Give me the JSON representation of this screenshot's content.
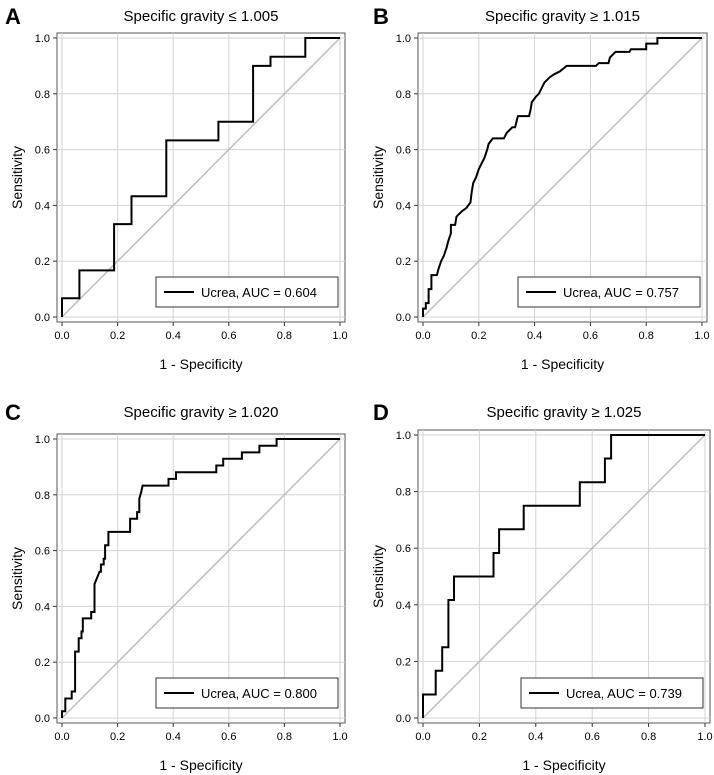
{
  "chart_data": [
    {
      "type": "line",
      "panel_letter": "A",
      "title": "Specific gravity ≤ 1.005",
      "xlabel": "1 - Specificity",
      "ylabel": "Sensitivity",
      "xlim": [
        0,
        1
      ],
      "ylim": [
        0,
        1
      ],
      "ticks": [
        "0.0",
        "0.2",
        "0.4",
        "0.6",
        "0.8",
        "1.0"
      ],
      "grid": true,
      "legend_position": "bottom-right",
      "series": [
        {
          "name": "Ucrea, AUC = 0.604",
          "color": "#000000",
          "x": [
            0,
            0,
            0.0625,
            0.0625,
            0.1875,
            0.1875,
            0.25,
            0.25,
            0.375,
            0.375,
            0.5625,
            0.5625,
            0.6875,
            0.6875,
            0.75,
            0.75,
            0.875,
            0.875,
            1
          ],
          "y": [
            0,
            0.067,
            0.067,
            0.167,
            0.167,
            0.333,
            0.333,
            0.433,
            0.433,
            0.633,
            0.633,
            0.7,
            0.7,
            0.9,
            0.9,
            0.933,
            0.933,
            1,
            1
          ]
        },
        {
          "name": "reference",
          "color": "#bdbdbd",
          "x": [
            0,
            1
          ],
          "y": [
            0,
            1
          ]
        }
      ]
    },
    {
      "type": "line",
      "panel_letter": "B",
      "title": "Specific gravity ≥ 1.015",
      "xlabel": "1 - Specificity",
      "ylabel": "Sensitivity",
      "xlim": [
        0,
        1
      ],
      "ylim": [
        0,
        1
      ],
      "ticks": [
        "0.0",
        "0.2",
        "0.4",
        "0.6",
        "0.8",
        "1.0"
      ],
      "grid": true,
      "legend_position": "bottom-right",
      "series": [
        {
          "name": "Ucrea, AUC = 0.757",
          "color": "#000000",
          "x": [
            0,
            0,
            0.01,
            0.01,
            0.02,
            0.02,
            0.03,
            0.03,
            0.05,
            0.055,
            0.065,
            0.075,
            0.085,
            0.09,
            0.1,
            0.1,
            0.115,
            0.12,
            0.14,
            0.155,
            0.17,
            0.17,
            0.175,
            0.18,
            0.19,
            0.2,
            0.21,
            0.22,
            0.23,
            0.235,
            0.25,
            0.29,
            0.3,
            0.32,
            0.33,
            0.34,
            0.38,
            0.385,
            0.39,
            0.405,
            0.415,
            0.425,
            0.435,
            0.455,
            0.47,
            0.49,
            0.515,
            0.62,
            0.63,
            0.665,
            0.67,
            0.69,
            0.74,
            0.745,
            0.8,
            0.8,
            0.84,
            0.84,
            1
          ],
          "y": [
            0,
            0.03,
            0.03,
            0.05,
            0.05,
            0.1,
            0.1,
            0.15,
            0.15,
            0.17,
            0.2,
            0.22,
            0.25,
            0.27,
            0.3,
            0.33,
            0.33,
            0.36,
            0.38,
            0.39,
            0.41,
            0.41,
            0.45,
            0.48,
            0.5,
            0.53,
            0.55,
            0.57,
            0.6,
            0.62,
            0.64,
            0.64,
            0.66,
            0.68,
            0.68,
            0.72,
            0.72,
            0.74,
            0.77,
            0.79,
            0.8,
            0.82,
            0.84,
            0.86,
            0.87,
            0.88,
            0.9,
            0.9,
            0.91,
            0.91,
            0.93,
            0.95,
            0.95,
            0.96,
            0.96,
            0.98,
            0.98,
            1,
            1
          ]
        },
        {
          "name": "reference",
          "color": "#bdbdbd",
          "x": [
            0,
            1
          ],
          "y": [
            0,
            1
          ]
        }
      ]
    },
    {
      "type": "line",
      "panel_letter": "C",
      "title": "Specific gravity ≥ 1.020",
      "xlabel": "1 - Specificity",
      "ylabel": "Sensitivity",
      "xlim": [
        0,
        1
      ],
      "ylim": [
        0,
        1
      ],
      "ticks": [
        "0.0",
        "0.2",
        "0.4",
        "0.6",
        "0.8",
        "1.0"
      ],
      "grid": true,
      "legend_position": "bottom-right",
      "series": [
        {
          "name": "Ucrea, AUC = 0.800",
          "color": "#000000",
          "x": [
            0,
            0,
            0.012,
            0.012,
            0.035,
            0.035,
            0.047,
            0.047,
            0.06,
            0.06,
            0.07,
            0.07,
            0.075,
            0.075,
            0.105,
            0.105,
            0.117,
            0.117,
            0.125,
            0.135,
            0.14,
            0.14,
            0.15,
            0.15,
            0.155,
            0.155,
            0.167,
            0.167,
            0.245,
            0.245,
            0.27,
            0.27,
            0.278,
            0.278,
            0.285,
            0.29,
            0.383,
            0.383,
            0.41,
            0.41,
            0.555,
            0.555,
            0.58,
            0.58,
            0.647,
            0.647,
            0.71,
            0.71,
            0.772,
            0.772,
            1
          ],
          "y": [
            0,
            0.024,
            0.024,
            0.07,
            0.07,
            0.095,
            0.095,
            0.238,
            0.238,
            0.286,
            0.286,
            0.31,
            0.31,
            0.357,
            0.357,
            0.38,
            0.38,
            0.48,
            0.5,
            0.524,
            0.524,
            0.55,
            0.55,
            0.571,
            0.571,
            0.619,
            0.619,
            0.667,
            0.667,
            0.714,
            0.714,
            0.738,
            0.738,
            0.786,
            0.81,
            0.833,
            0.833,
            0.857,
            0.857,
            0.881,
            0.881,
            0.905,
            0.905,
            0.929,
            0.929,
            0.952,
            0.952,
            0.976,
            0.976,
            1,
            1
          ]
        },
        {
          "name": "reference",
          "color": "#bdbdbd",
          "x": [
            0,
            1
          ],
          "y": [
            0,
            1
          ]
        }
      ]
    },
    {
      "type": "line",
      "panel_letter": "D",
      "title": "Specific gravity ≥ 1.025",
      "xlabel": "1 - Specificity",
      "ylabel": "Sensitivity",
      "xlim": [
        0,
        1
      ],
      "ylim": [
        0,
        1
      ],
      "ticks": [
        "0.0",
        "0.2",
        "0.4",
        "0.6",
        "0.8",
        "1.0"
      ],
      "grid": true,
      "legend_position": "bottom-right",
      "series": [
        {
          "name": "Ucrea, AUC = 0.739",
          "color": "#000000",
          "x": [
            0,
            0,
            0.045,
            0.045,
            0.068,
            0.068,
            0.09,
            0.09,
            0.11,
            0.11,
            0.25,
            0.25,
            0.27,
            0.27,
            0.357,
            0.357,
            0.556,
            0.556,
            0.645,
            0.645,
            0.667,
            0.667,
            1
          ],
          "y": [
            0,
            0.083,
            0.083,
            0.167,
            0.167,
            0.25,
            0.25,
            0.417,
            0.417,
            0.5,
            0.5,
            0.583,
            0.583,
            0.667,
            0.667,
            0.75,
            0.75,
            0.833,
            0.833,
            0.917,
            0.917,
            1,
            1
          ]
        },
        {
          "name": "reference",
          "color": "#bdbdbd",
          "x": [
            0,
            1
          ],
          "y": [
            0,
            1
          ]
        }
      ]
    }
  ]
}
